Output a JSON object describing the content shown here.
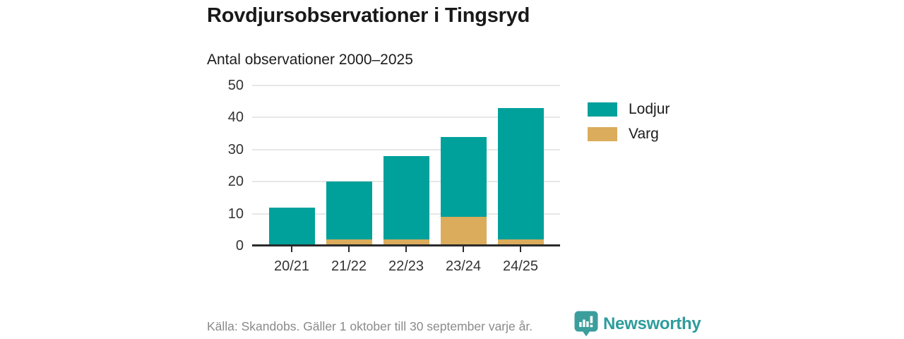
{
  "page": {
    "title": "Rovdjursobservationer i Tingsryd",
    "subtitle": "Antal observationer 2000–2025"
  },
  "chart_data": {
    "type": "bar",
    "stacked": true,
    "title": "Rovdjursobservationer i Tingsryd",
    "subtitle": "Antal observationer 2000–2025",
    "categories": [
      "20/21",
      "21/22",
      "22/23",
      "23/24",
      "24/25"
    ],
    "series": [
      {
        "name": "Lodjur",
        "color": "#00a09b",
        "values": [
          12,
          18,
          26,
          25,
          41
        ]
      },
      {
        "name": "Varg",
        "color": "#daac5b",
        "values": [
          0,
          2,
          2,
          9,
          2
        ]
      }
    ],
    "stack_order_bottom_to_top": [
      "Varg",
      "Lodjur"
    ],
    "totals": [
      12,
      20,
      28,
      34,
      43
    ],
    "xlabel": "",
    "ylabel": "",
    "ylim": [
      0,
      50
    ],
    "yticks": [
      0,
      10,
      20,
      30,
      40,
      50
    ],
    "grid": true,
    "legend_position": "right"
  },
  "legend": {
    "items": [
      {
        "label": "Lodjur",
        "color": "#00a09b"
      },
      {
        "label": "Varg",
        "color": "#daac5b"
      }
    ]
  },
  "footer": {
    "source": "Källa: Skandobs. Gäller 1 oktober till 30 september varje år.",
    "brand": "Newsworthy"
  },
  "colors": {
    "lodjur": "#00a09b",
    "varg": "#daac5b",
    "axis": "#2b2b2b",
    "grid": "#e7e7e7",
    "title_text": "#191919",
    "tick_text": "#333333",
    "muted_text": "#8a8a8a",
    "brand_teal": "#2f9c9c"
  }
}
